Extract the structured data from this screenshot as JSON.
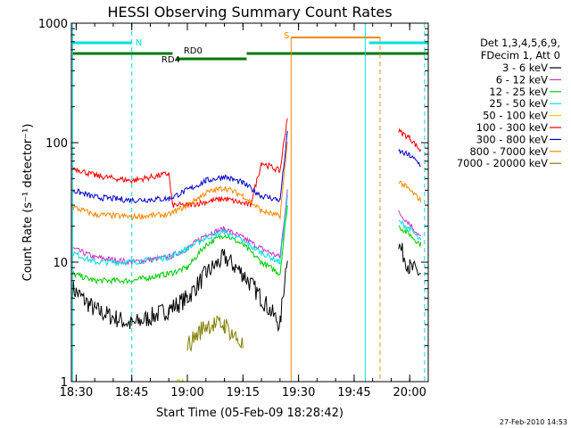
{
  "chart_data": {
    "type": "line",
    "title": "HESSI Observing Summary Count Rates",
    "xlabel": "Start Time (05-Feb-09 18:28:42)",
    "ylabel": "Count Rate (s⁻¹ detector⁻¹)",
    "yscale": "log",
    "ylim": [
      1,
      1000
    ],
    "xlim": [
      "18:28:42",
      "20:05:00"
    ],
    "x_ticks": [
      "18:30",
      "18:45",
      "19:00",
      "19:15",
      "19:30",
      "19:45",
      "20:00"
    ],
    "y_ticks": [
      "1",
      "10",
      "100",
      "1000"
    ],
    "timestamp": "27-Feb-2010 14:53",
    "legend": {
      "placement": "right",
      "header": [
        "Det 1,3,4,5,6,9,",
        "FDecim 1, Att 0"
      ]
    },
    "series": [
      {
        "name": "3 - 6 keV",
        "color": "#000000",
        "x": [
          "18:29",
          "18:35",
          "18:45",
          "18:55",
          "19:00",
          "19:05",
          "19:10",
          "19:15",
          "19:20",
          "19:25",
          "19:27",
          "19:57",
          "20:00",
          "20:03"
        ],
        "y": [
          6,
          4,
          3,
          4,
          5,
          8,
          11,
          8,
          5,
          3,
          12,
          14,
          9,
          8
        ]
      },
      {
        "name": "6 - 12 keV",
        "color": "#cc33cc",
        "x": [
          "18:29",
          "18:35",
          "18:45",
          "18:55",
          "19:00",
          "19:05",
          "19:10",
          "19:15",
          "19:20",
          "19:25",
          "19:27",
          "19:57",
          "20:00",
          "20:03"
        ],
        "y": [
          13,
          11,
          10,
          11,
          13,
          17,
          19,
          16,
          13,
          11,
          40,
          26,
          21,
          16
        ]
      },
      {
        "name": "12 - 25 keV",
        "color": "#00cc00",
        "x": [
          "18:29",
          "18:35",
          "18:45",
          "18:55",
          "19:00",
          "19:05",
          "19:10",
          "19:15",
          "19:20",
          "19:25",
          "19:27",
          "19:57",
          "20:00",
          "20:03"
        ],
        "y": [
          8,
          7,
          7,
          8,
          9,
          14,
          17,
          14,
          10,
          8,
          30,
          20,
          17,
          14
        ]
      },
      {
        "name": "25 - 50 keV",
        "color": "#00e0e0",
        "x": [
          "18:29",
          "18:35",
          "18:45",
          "18:55",
          "19:00",
          "19:05",
          "19:10",
          "19:15",
          "19:20",
          "19:25",
          "19:27",
          "19:57",
          "20:00",
          "20:03"
        ],
        "y": [
          12,
          10,
          10,
          11,
          13,
          16,
          18,
          15,
          12,
          10,
          35,
          22,
          19,
          15
        ]
      },
      {
        "name": "50 - 100 keV",
        "color": "#d8d800",
        "x": [
          "18:57",
          "18:59"
        ],
        "y": [
          1,
          1
        ]
      },
      {
        "name": "100 - 300 keV",
        "color": "#ff0000",
        "x": [
          "18:29",
          "18:35",
          "18:45",
          "18:55",
          "18:56",
          "19:00",
          "19:10",
          "19:17",
          "19:20",
          "19:25",
          "19:27",
          "19:57",
          "20:00",
          "20:03"
        ],
        "y": [
          62,
          53,
          48,
          55,
          30,
          30,
          34,
          30,
          68,
          58,
          165,
          125,
          110,
          85
        ]
      },
      {
        "name": "300 - 800 keV",
        "color": "#0000cc",
        "x": [
          "18:29",
          "18:35",
          "18:45",
          "18:55",
          "19:00",
          "19:05",
          "19:10",
          "19:15",
          "19:20",
          "19:25",
          "19:27",
          "19:57",
          "20:00",
          "20:03"
        ],
        "y": [
          40,
          35,
          33,
          34,
          40,
          48,
          52,
          46,
          36,
          33,
          120,
          85,
          78,
          65
        ]
      },
      {
        "name": "800 - 7000 keV",
        "color": "#ff8800",
        "x": [
          "18:29",
          "18:35",
          "18:45",
          "18:55",
          "19:00",
          "19:05",
          "19:10",
          "19:15",
          "19:20",
          "19:25",
          "19:27",
          "19:57",
          "20:00",
          "20:03"
        ],
        "y": [
          29,
          25,
          24,
          25,
          30,
          38,
          42,
          36,
          27,
          24,
          100,
          48,
          40,
          33
        ]
      },
      {
        "name": "7000 - 20000 keV",
        "color": "#808000",
        "x": [
          "19:00",
          "19:05",
          "19:10",
          "19:15"
        ],
        "y": [
          2,
          3,
          3,
          2
        ]
      }
    ],
    "annotations": [
      {
        "label": "N",
        "color": "#00e0e0",
        "kind": "flag"
      },
      {
        "label": "RD0",
        "color": "#007700",
        "kind": "flag"
      },
      {
        "label": "RD4",
        "color": "#007700",
        "kind": "flag"
      },
      {
        "label": "S",
        "color": "#ff8800",
        "kind": "flag"
      }
    ]
  }
}
